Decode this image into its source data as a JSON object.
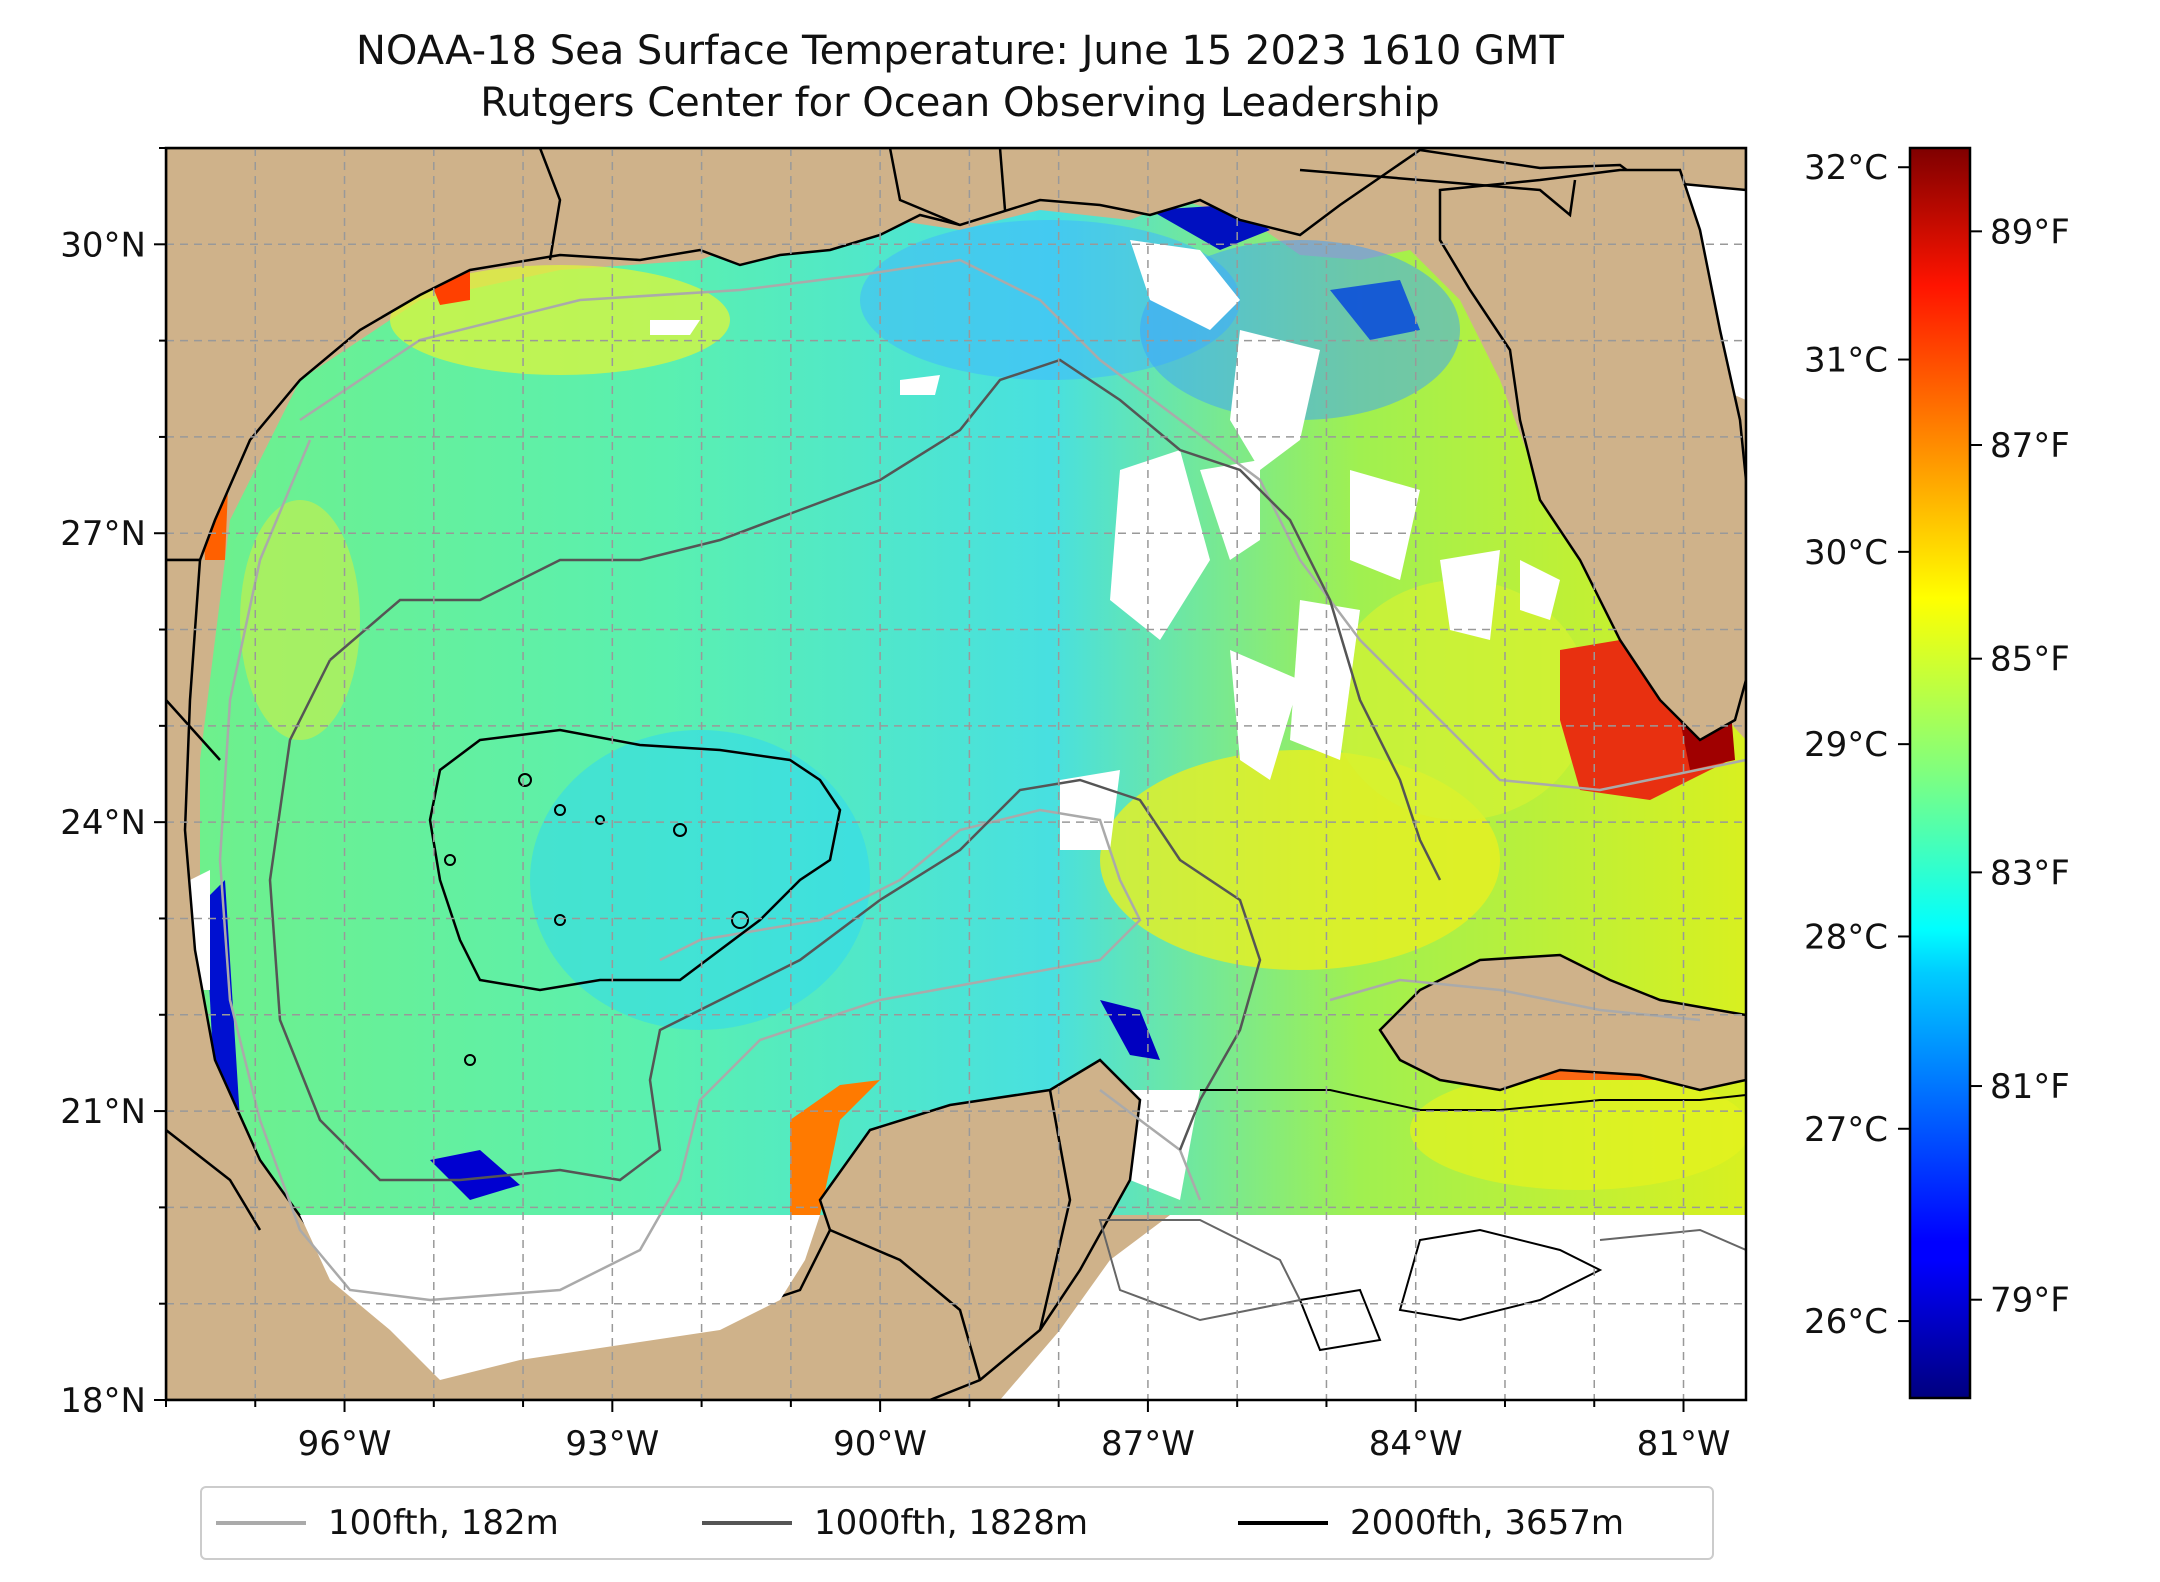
{
  "title": {
    "line1": "NOAA-18 Sea Surface Temperature: June 15 2023 1610 GMT",
    "line2": "Rutgers Center for Ocean Observing Leadership"
  },
  "map": {
    "lon_range": [
      -98,
      -80.3
    ],
    "lat_range": [
      18,
      31
    ],
    "lon_ticks": [
      -96,
      -93,
      -90,
      -87,
      -84,
      -81
    ],
    "lon_tick_labels": [
      "96°W",
      "93°W",
      "90°W",
      "87°W",
      "84°W",
      "81°W"
    ],
    "lat_ticks": [
      18,
      21,
      24,
      27,
      30
    ],
    "lat_tick_labels": [
      "18°N",
      "21°N",
      "24°N",
      "27°N",
      "30°N"
    ],
    "gridlines": true,
    "land_color": "#cfb28a"
  },
  "legend": {
    "items": [
      {
        "label": "100fth, 182m",
        "color": "#aaaaaa"
      },
      {
        "label": "1000fth, 1828m",
        "color": "#555555"
      },
      {
        "label": "2000fth, 3657m",
        "color": "#000000"
      }
    ],
    "placement": "bottom"
  },
  "colorbar": {
    "colormap": "jet",
    "celsius_range": [
      25.6,
      32.1
    ],
    "celsius_ticks": [
      "26°C",
      "27°C",
      "28°C",
      "29°C",
      "30°C",
      "31°C",
      "32°C"
    ],
    "fahrenheit_ticks": [
      "79°F",
      "81°F",
      "83°F",
      "85°F",
      "87°F",
      "89°F"
    ]
  }
}
